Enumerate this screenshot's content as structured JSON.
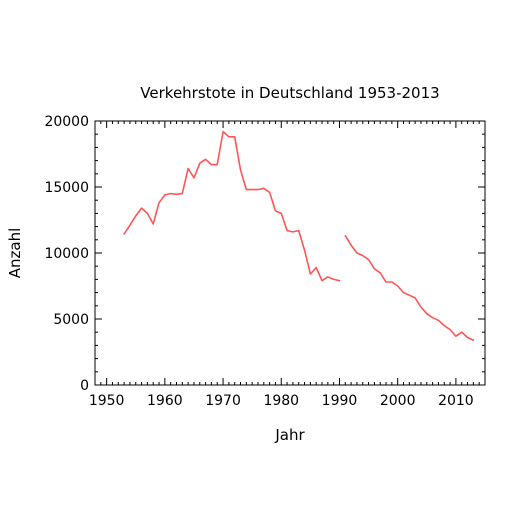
{
  "chart_data": {
    "type": "line",
    "title": "Verkehrstote in Deutschland 1953-2013",
    "xlabel": "Jahr",
    "ylabel": "Anzahl",
    "xlim": [
      1948,
      2015
    ],
    "ylim": [
      0,
      20000
    ],
    "x_ticks": [
      1950,
      1960,
      1970,
      1980,
      1990,
      2000,
      2010
    ],
    "y_ticks": [
      0,
      5000,
      10000,
      15000,
      20000
    ],
    "grid": false,
    "legend": "none",
    "series_color": "#ff5555",
    "series": [
      {
        "segments": [
          {
            "x": [
              1953,
              1954,
              1955,
              1956,
              1957,
              1958,
              1959,
              1960,
              1961,
              1962,
              1963,
              1964,
              1965,
              1966,
              1967,
              1968,
              1969,
              1970,
              1971,
              1972,
              1973,
              1974,
              1975,
              1976,
              1977,
              1978,
              1979,
              1980,
              1981,
              1982,
              1983,
              1984,
              1985,
              1986,
              1987,
              1988,
              1989,
              1990
            ],
            "y": [
              11450,
              12100,
              12800,
              13400,
              13000,
              12200,
              13800,
              14400,
              14500,
              14450,
              14500,
              16400,
              15700,
              16800,
              17100,
              16700,
              16700,
              19200,
              18800,
              18800,
              16300,
              14800,
              14800,
              14800,
              14900,
              14600,
              13200,
              13000,
              11700,
              11600,
              11700,
              10200,
              8400,
              8900,
              7900,
              8200,
              8000,
              7900
            ]
          },
          {
            "x": [
              1991,
              1992,
              1993,
              1994,
              1995,
              1996,
              1997,
              1998,
              1999,
              2000,
              2001,
              2002,
              2003,
              2004,
              2005,
              2006,
              2007,
              2008,
              2009,
              2010,
              2011,
              2012,
              2013
            ],
            "y": [
              11300,
              10600,
              10000,
              9800,
              9500,
              8800,
              8500,
              7800,
              7800,
              7500,
              7000,
              6800,
              6600,
              5900,
              5400,
              5100,
              4900,
              4500,
              4200,
              3700,
              4000,
              3600,
              3400
            ]
          }
        ]
      }
    ]
  }
}
